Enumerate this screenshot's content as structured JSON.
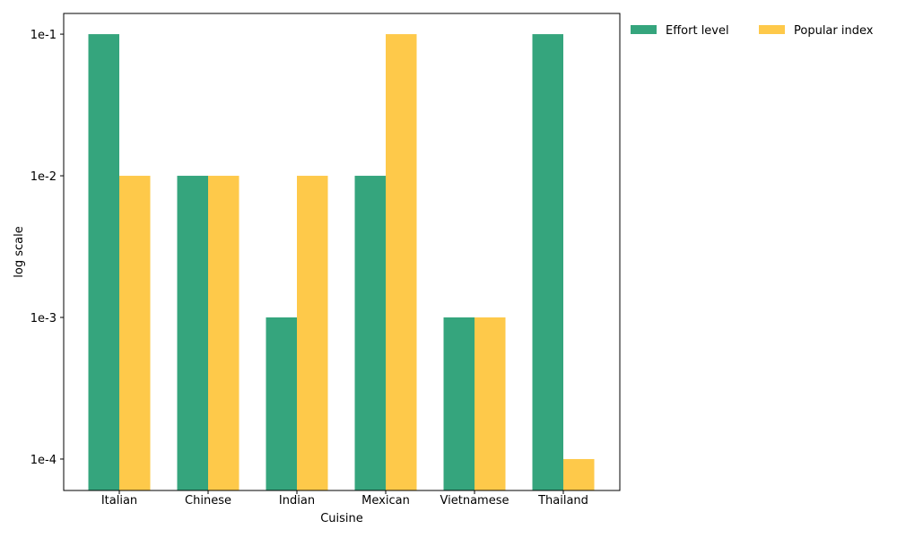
{
  "chart_data": {
    "type": "bar",
    "xlabel": "Cuisine",
    "ylabel": "log scale",
    "categories": [
      "Italian",
      "Chinese",
      "Indian",
      "Mexican",
      "Vietnamese",
      "Thailand"
    ],
    "series": [
      {
        "name": "Effort level",
        "color": "#35a57d",
        "values": [
          0.1,
          0.01,
          0.001,
          0.01,
          0.001,
          0.1
        ]
      },
      {
        "name": "Popular index",
        "color": "#fec94a",
        "values": [
          0.01,
          0.01,
          0.01,
          0.1,
          0.001,
          0.0001
        ]
      }
    ],
    "yscale": "log",
    "ylim": [
      6e-05,
      0.14
    ],
    "yticks": [
      {
        "value": 0.1,
        "label": "1e-1"
      },
      {
        "value": 0.01,
        "label": "1e-2"
      },
      {
        "value": 0.001,
        "label": "1e-3"
      },
      {
        "value": 0.0001,
        "label": "1e-4"
      }
    ],
    "grid": false,
    "legend_position": "outside-top-right"
  }
}
